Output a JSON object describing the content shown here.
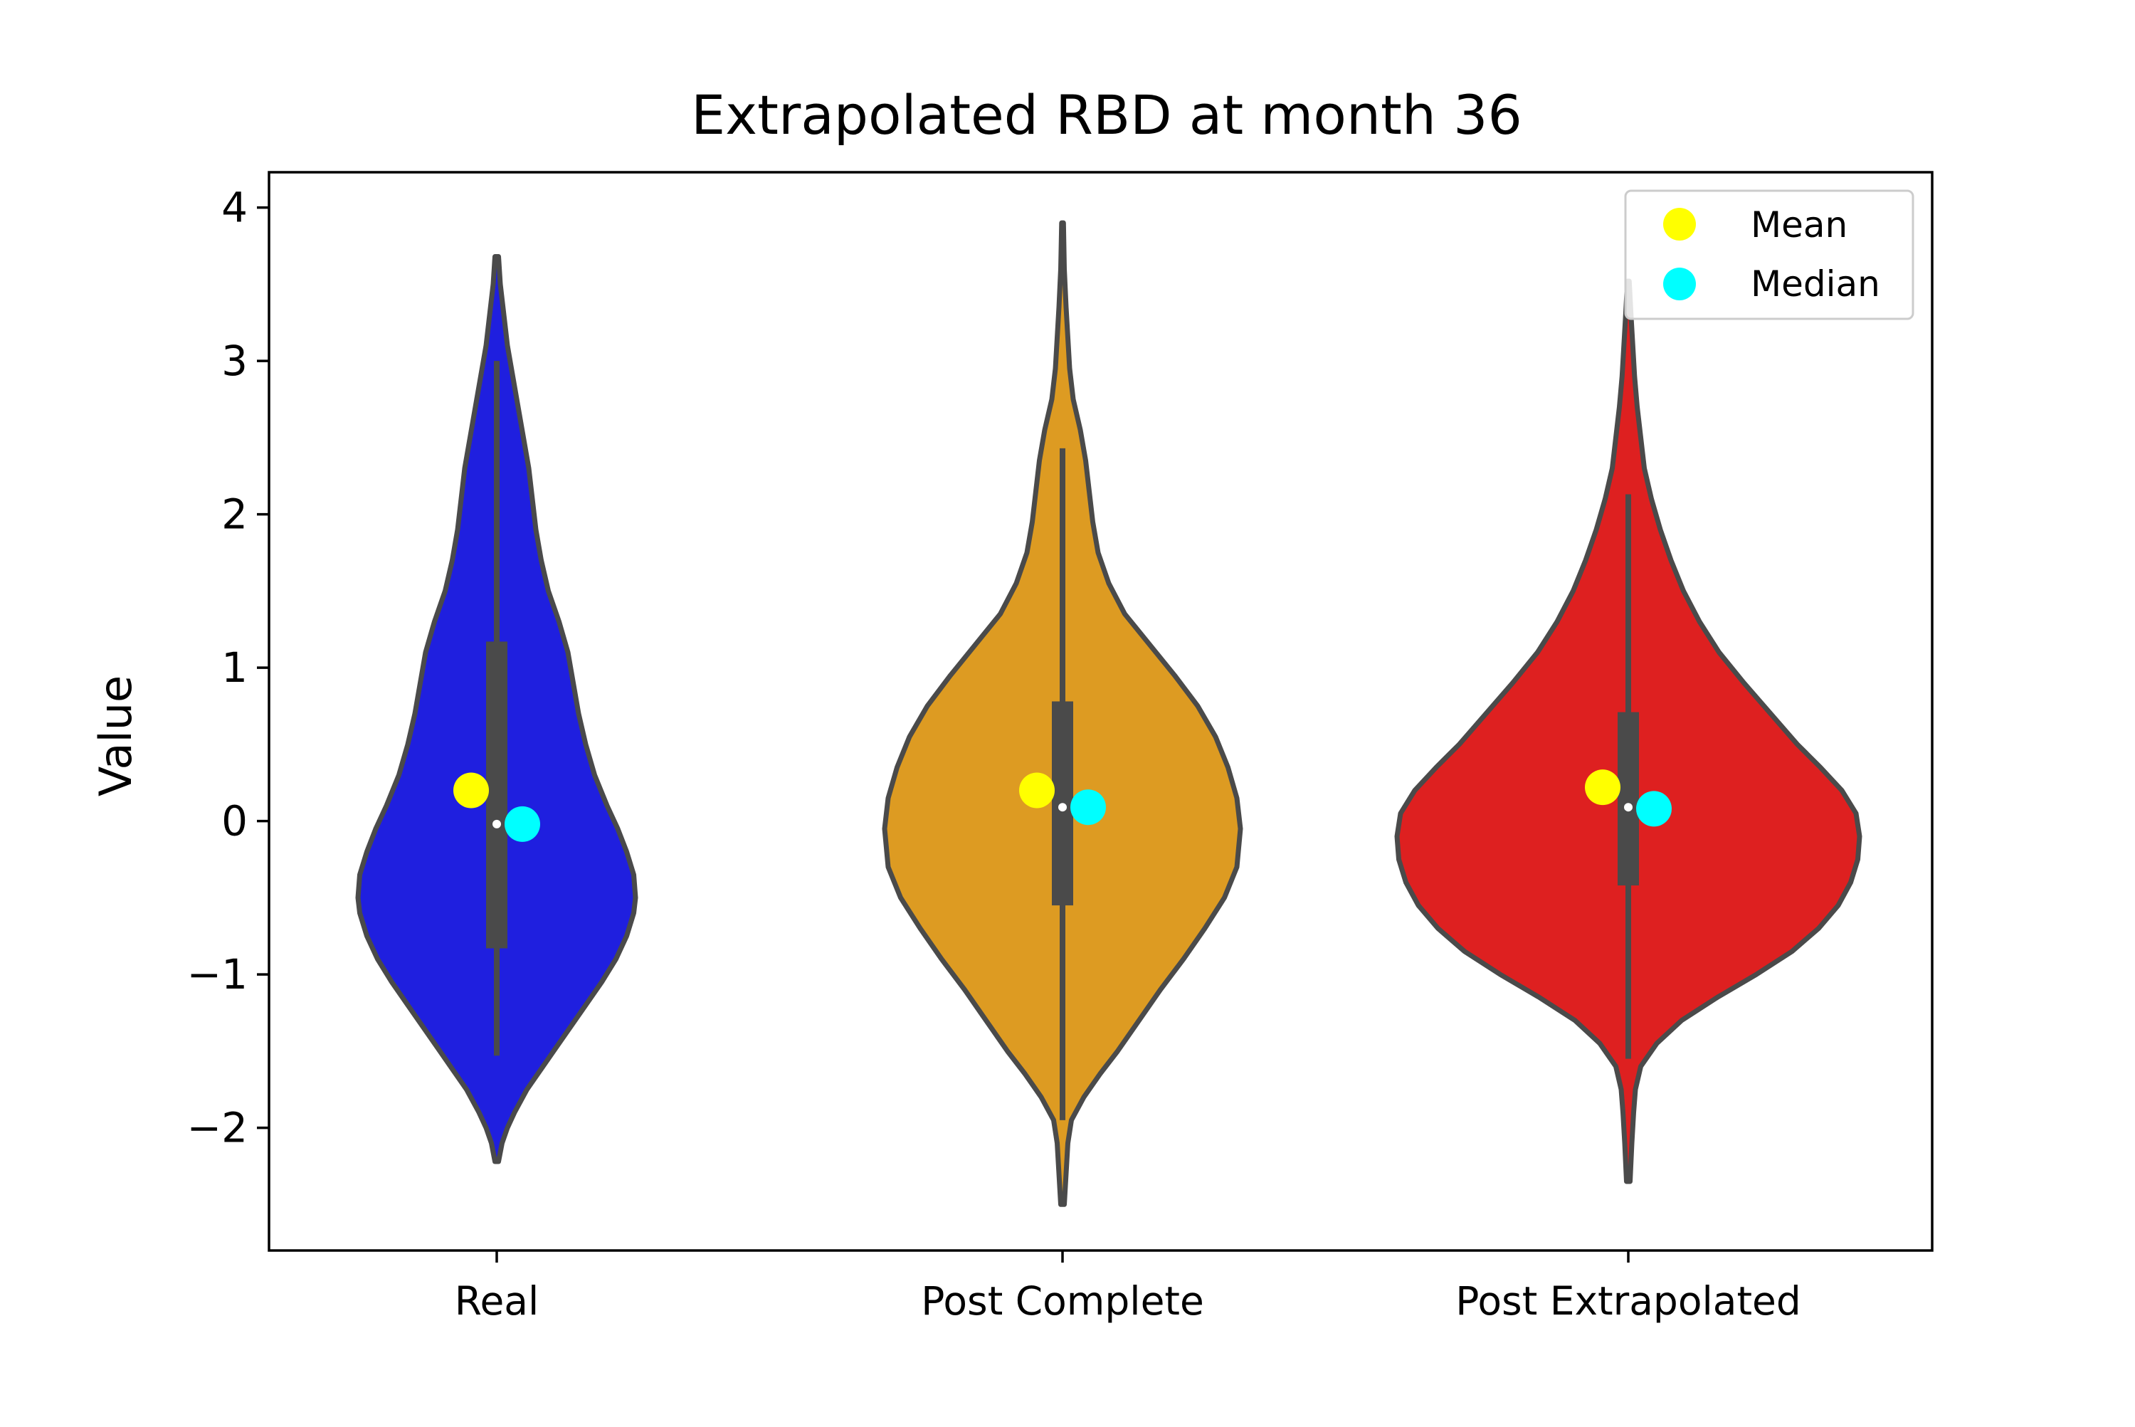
{
  "chart_data": {
    "type": "violin",
    "title": "Extrapolated RBD at month 36",
    "xlabel": "",
    "ylabel": "Value",
    "ylim": [
      -2.8,
      4.23
    ],
    "yticks": [
      -2,
      -1,
      0,
      1,
      2,
      3,
      4
    ],
    "ytick_labels": [
      "−2",
      "−1",
      "0",
      "1",
      "2",
      "3",
      "4"
    ],
    "categories": [
      "Real",
      "Post Complete",
      "Post Extrapolated"
    ],
    "legend": {
      "placement": "top-right",
      "entries": [
        {
          "label": "Mean",
          "color": "#ffff00"
        },
        {
          "label": "Median",
          "color": "#00ffff"
        }
      ]
    },
    "violin_outline_color": "#4a4a4a",
    "series": [
      {
        "category": "Real",
        "color": "#1f1fdf",
        "min": -2.22,
        "max": 3.68,
        "whisker_low": -1.53,
        "whisker_high": 3.0,
        "q1": -0.83,
        "q3": 1.17,
        "box_median": -0.02,
        "mean": 0.2,
        "median": -0.02,
        "density": [
          [
            -2.22,
            0.01
          ],
          [
            -2.1,
            0.03
          ],
          [
            -2.0,
            0.06
          ],
          [
            -1.9,
            0.1
          ],
          [
            -1.75,
            0.17
          ],
          [
            -1.6,
            0.26
          ],
          [
            -1.5,
            0.32
          ],
          [
            -1.35,
            0.41
          ],
          [
            -1.2,
            0.5
          ],
          [
            -1.05,
            0.59
          ],
          [
            -0.9,
            0.67
          ],
          [
            -0.75,
            0.73
          ],
          [
            -0.6,
            0.77
          ],
          [
            -0.5,
            0.78
          ],
          [
            -0.35,
            0.77
          ],
          [
            -0.2,
            0.73
          ],
          [
            -0.05,
            0.68
          ],
          [
            0.1,
            0.62
          ],
          [
            0.3,
            0.55
          ],
          [
            0.5,
            0.5
          ],
          [
            0.7,
            0.46
          ],
          [
            0.9,
            0.43
          ],
          [
            1.1,
            0.4
          ],
          [
            1.3,
            0.35
          ],
          [
            1.5,
            0.29
          ],
          [
            1.7,
            0.25
          ],
          [
            1.9,
            0.22
          ],
          [
            2.1,
            0.2
          ],
          [
            2.3,
            0.18
          ],
          [
            2.5,
            0.15
          ],
          [
            2.7,
            0.12
          ],
          [
            2.9,
            0.09
          ],
          [
            3.1,
            0.06
          ],
          [
            3.3,
            0.04
          ],
          [
            3.5,
            0.02
          ],
          [
            3.68,
            0.01
          ]
        ]
      },
      {
        "category": "Post Complete",
        "color": "#dd9b22",
        "min": -2.5,
        "max": 3.9,
        "whisker_low": -1.95,
        "whisker_high": 2.43,
        "q1": -0.55,
        "q3": 0.78,
        "box_median": 0.09,
        "mean": 0.2,
        "median": 0.09,
        "density": [
          [
            -2.5,
            0.01
          ],
          [
            -2.3,
            0.02
          ],
          [
            -2.1,
            0.03
          ],
          [
            -1.95,
            0.05
          ],
          [
            -1.8,
            0.12
          ],
          [
            -1.65,
            0.21
          ],
          [
            -1.5,
            0.31
          ],
          [
            -1.3,
            0.43
          ],
          [
            -1.1,
            0.55
          ],
          [
            -0.9,
            0.68
          ],
          [
            -0.7,
            0.8
          ],
          [
            -0.5,
            0.91
          ],
          [
            -0.3,
            0.98
          ],
          [
            -0.05,
            1.0
          ],
          [
            0.15,
            0.98
          ],
          [
            0.35,
            0.93
          ],
          [
            0.55,
            0.86
          ],
          [
            0.75,
            0.76
          ],
          [
            0.95,
            0.63
          ],
          [
            1.15,
            0.49
          ],
          [
            1.35,
            0.35
          ],
          [
            1.55,
            0.26
          ],
          [
            1.75,
            0.2
          ],
          [
            1.95,
            0.17
          ],
          [
            2.15,
            0.15
          ],
          [
            2.35,
            0.13
          ],
          [
            2.55,
            0.1
          ],
          [
            2.75,
            0.06
          ],
          [
            2.95,
            0.04
          ],
          [
            3.15,
            0.03
          ],
          [
            3.35,
            0.02
          ],
          [
            3.6,
            0.01
          ],
          [
            3.9,
            0.005
          ]
        ]
      },
      {
        "category": "Post Extrapolated",
        "color": "#de2020",
        "min": -2.35,
        "max": 3.52,
        "whisker_low": -1.55,
        "whisker_high": 2.13,
        "q1": -0.42,
        "q3": 0.71,
        "box_median": 0.09,
        "mean": 0.22,
        "median": 0.08,
        "density": [
          [
            -2.35,
            0.01
          ],
          [
            -2.1,
            0.02
          ],
          [
            -1.9,
            0.03
          ],
          [
            -1.75,
            0.04
          ],
          [
            -1.6,
            0.07
          ],
          [
            -1.45,
            0.16
          ],
          [
            -1.3,
            0.3
          ],
          [
            -1.15,
            0.5
          ],
          [
            -1.0,
            0.72
          ],
          [
            -0.85,
            0.92
          ],
          [
            -0.7,
            1.07
          ],
          [
            -0.55,
            1.18
          ],
          [
            -0.4,
            1.25
          ],
          [
            -0.25,
            1.29
          ],
          [
            -0.1,
            1.3
          ],
          [
            0.05,
            1.28
          ],
          [
            0.2,
            1.2
          ],
          [
            0.35,
            1.08
          ],
          [
            0.5,
            0.95
          ],
          [
            0.7,
            0.8
          ],
          [
            0.9,
            0.65
          ],
          [
            1.1,
            0.51
          ],
          [
            1.3,
            0.4
          ],
          [
            1.5,
            0.31
          ],
          [
            1.7,
            0.24
          ],
          [
            1.9,
            0.18
          ],
          [
            2.1,
            0.13
          ],
          [
            2.3,
            0.09
          ],
          [
            2.5,
            0.07
          ],
          [
            2.7,
            0.05
          ],
          [
            2.9,
            0.035
          ],
          [
            3.1,
            0.025
          ],
          [
            3.3,
            0.015
          ],
          [
            3.52,
            0.005
          ]
        ]
      }
    ]
  }
}
